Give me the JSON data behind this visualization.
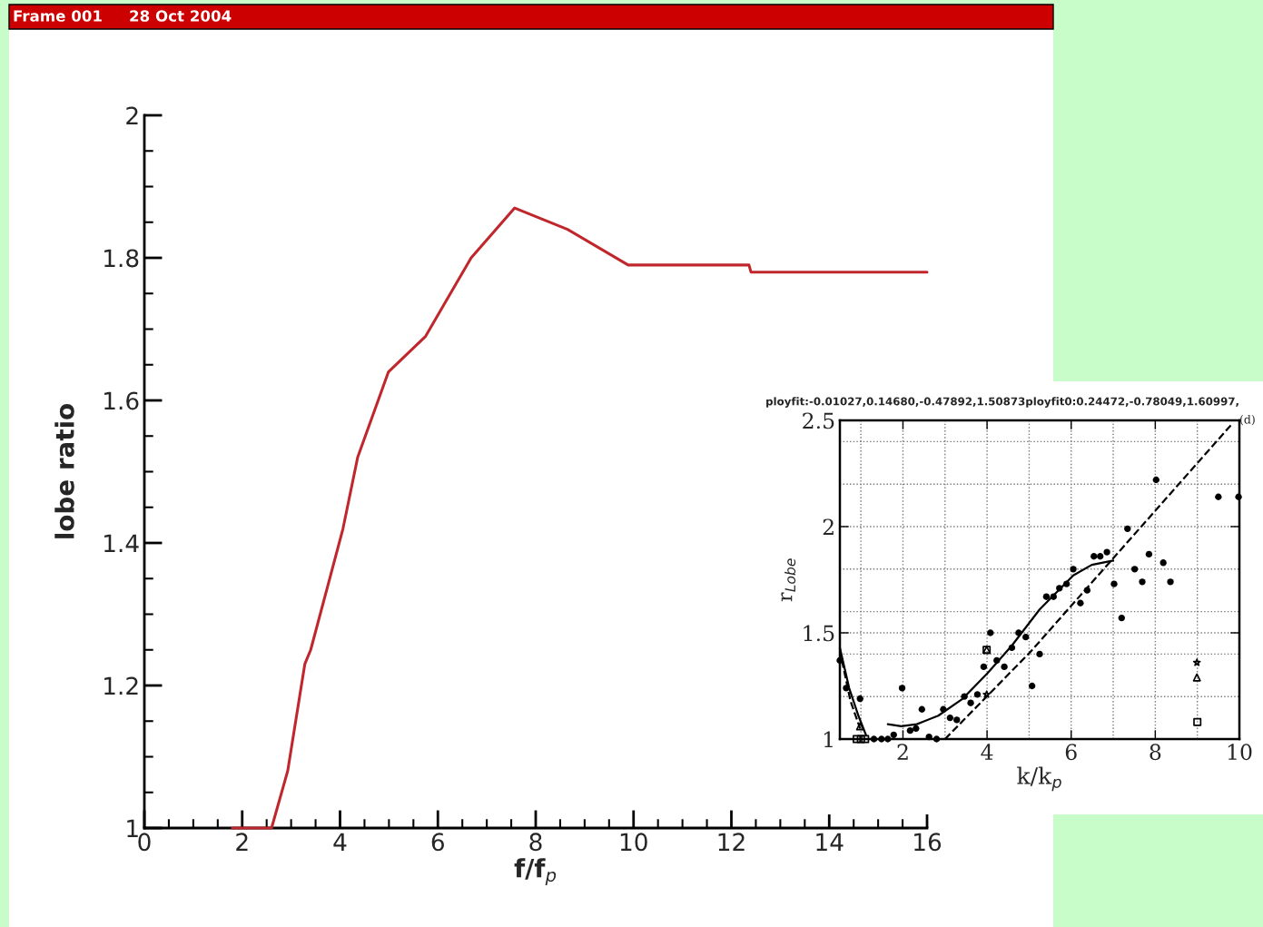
{
  "chart_data": [
    {
      "type": "line",
      "annotations": [
        "Frame 001",
        "28 Oct 2004"
      ],
      "xlabel": "f/f$_{p}$",
      "ylabel": "lobe ratio",
      "series": [
        {
          "color": "#c0272d",
          "x": [
            1.8,
            2.6,
            2.93,
            3.28,
            3.4,
            3.75,
            4.06,
            4.36,
            4.99,
            5.75,
            6.68,
            7.57,
            8.65,
            9.89,
            10.45,
            12.36,
            12.4,
            16
          ],
          "values": [
            1.0,
            1.0,
            1.08,
            1.23,
            1.25,
            1.34,
            1.42,
            1.52,
            1.64,
            1.69,
            1.8,
            1.87,
            1.84,
            1.79,
            1.79,
            1.79,
            1.78,
            1.78
          ]
        }
      ],
      "xlim": [
        0,
        16
      ],
      "ylim": [
        1,
        2
      ],
      "xticks": [
        0,
        {
          "value": 0.5,
          "label": null
        },
        {
          "value": 1,
          "label": null
        },
        {
          "value": 1.5,
          "label": null
        },
        2,
        {
          "value": 2.5,
          "label": null
        },
        {
          "value": 3,
          "label": null
        },
        {
          "value": 3.5,
          "label": null
        },
        4,
        {
          "value": 4.5,
          "label": null
        },
        {
          "value": 5,
          "label": null
        },
        {
          "value": 5.5,
          "label": null
        },
        6,
        {
          "value": 6.5,
          "label": null
        },
        {
          "value": 7,
          "label": null
        },
        {
          "value": 7.5,
          "label": null
        },
        8,
        {
          "value": 8.5,
          "label": null
        },
        {
          "value": 9,
          "label": null
        },
        {
          "value": 9.5,
          "label": null
        },
        10,
        {
          "value": 10.5,
          "label": null
        },
        {
          "value": 11,
          "label": null
        },
        {
          "value": 11.5,
          "label": null
        },
        12,
        {
          "value": 12.5,
          "label": null
        },
        {
          "value": 13,
          "label": null
        },
        {
          "value": 13.5,
          "label": null
        },
        14,
        {
          "value": 14.5,
          "label": null
        },
        {
          "value": 15,
          "label": null
        },
        {
          "value": 15.5,
          "label": null
        },
        16
      ],
      "yticks": [
        1,
        {
          "value": 1.05,
          "label": null
        },
        {
          "value": 1.1,
          "label": null
        },
        {
          "value": 1.15,
          "label": null
        },
        1.2,
        {
          "value": 1.25,
          "label": null
        },
        {
          "value": 1.3,
          "label": null
        },
        {
          "value": 1.35,
          "label": null
        },
        1.4,
        {
          "value": 1.45,
          "label": null
        },
        {
          "value": 1.5,
          "label": null
        },
        {
          "value": 1.55,
          "label": null
        },
        1.6,
        {
          "value": 1.65,
          "label": null
        },
        {
          "value": 1.7,
          "label": null
        },
        {
          "value": 1.75,
          "label": null
        },
        1.8,
        {
          "value": 1.85,
          "label": null
        },
        {
          "value": 1.9,
          "label": null
        },
        {
          "value": 1.95,
          "label": null
        },
        2
      ]
    },
    {
      "type": "scatter",
      "title": "ployfit:-0.01027,0.14680,-0.47892,1.50873ployfit0:0.24472,-0.78049,1.60997,",
      "annotations": [
        "(d)"
      ],
      "xlabel": "k/k$_{p}$",
      "ylabel": "r$_{Lobe}$",
      "grid": true,
      "series": [
        {
          "type": "scatter",
          "marker": "circle",
          "color": "#000000",
          "x": [
            0.5,
            0.65,
            0.98,
            1.31,
            1.49,
            1.64,
            1.78,
            1.98,
            2.17,
            2.31,
            2.45,
            2.62,
            2.8,
            2.96,
            3.12,
            3.28,
            3.46,
            3.61,
            3.77,
            3.92,
            4.08,
            4.23,
            4.41,
            4.59,
            4.75,
            4.92,
            5.07,
            5.25,
            5.41,
            5.58,
            5.72,
            5.89,
            6.05,
            6.22,
            6.38,
            6.54,
            6.69,
            6.85,
            7.02,
            7.2,
            7.34,
            7.51,
            7.69,
            7.85,
            8.02,
            8.19,
            8.36,
            9.5,
            9.98
          ],
          "values": [
            1.37,
            1.24,
            1.19,
            1.0,
            1.0,
            1.0,
            1.02,
            1.24,
            1.04,
            1.05,
            1.14,
            1.01,
            1.0,
            1.14,
            1.1,
            1.09,
            1.2,
            1.17,
            1.21,
            1.34,
            1.5,
            1.37,
            1.34,
            1.43,
            1.5,
            1.48,
            1.25,
            1.4,
            1.67,
            1.67,
            1.71,
            1.73,
            1.8,
            1.64,
            1.7,
            1.86,
            1.86,
            1.88,
            1.73,
            1.57,
            1.99,
            1.8,
            1.74,
            1.87,
            2.22,
            1.83,
            1.74,
            2.14,
            2.14
          ]
        },
        {
          "type": "scatter",
          "marker": "square",
          "color": "#000000",
          "x": [
            0.9,
            1.0,
            1.1,
            3.99,
            9.0
          ],
          "values": [
            1.0,
            1.0,
            1.0,
            1.42,
            1.08
          ]
        },
        {
          "type": "scatter",
          "marker": "triangle",
          "color": "#000000",
          "x": [
            0.98,
            3.99,
            8.99
          ],
          "values": [
            1.06,
            1.42,
            1.29
          ]
        },
        {
          "type": "scatter",
          "marker": "star",
          "color": "#000000",
          "x": [
            3.99,
            8.99
          ],
          "values": [
            1.21,
            1.36
          ]
        },
        {
          "type": "line",
          "line_style": "solid",
          "color": "#000000",
          "x": [
            0.5,
            0.72,
            0.94,
            1.12
          ],
          "values": [
            1.43,
            1.24,
            1.11,
            1.02
          ]
        },
        {
          "type": "line",
          "line_style": "solid",
          "color": "#000000",
          "x": [
            1.64,
            1.96,
            2.33,
            2.84,
            3.42,
            4.01,
            4.59,
            5.25,
            6.05,
            6.49,
            7.0
          ],
          "values": [
            1.07,
            1.06,
            1.07,
            1.11,
            1.19,
            1.31,
            1.44,
            1.61,
            1.77,
            1.82,
            1.84
          ]
        },
        {
          "type": "line",
          "line_style": "dashed",
          "color": "#000000",
          "x": [
            0.55,
            0.75,
            0.98
          ],
          "values": [
            1.37,
            1.18,
            1.05
          ]
        },
        {
          "type": "line",
          "line_style": "dashed",
          "color": "#000000",
          "x": [
            3.0,
            5.03,
            9.81
          ],
          "values": [
            1.0,
            1.41,
            2.48
          ]
        }
      ],
      "xlim": [
        0.5,
        10
      ],
      "ylim": [
        1,
        2.5
      ],
      "xticks": [
        {
          "value": 1,
          "label": null
        },
        2,
        {
          "value": 3,
          "label": null
        },
        4,
        {
          "value": 5,
          "label": null
        },
        6,
        {
          "value": 7,
          "label": null
        },
        8,
        {
          "value": 9,
          "label": null
        },
        10
      ],
      "yticks": [
        1,
        {
          "value": 1.2,
          "label": null
        },
        {
          "value": 1.4,
          "label": null
        },
        1.5,
        {
          "value": 1.6,
          "label": null
        },
        {
          "value": 1.8,
          "label": null
        },
        2,
        {
          "value": 2.2,
          "label": null
        },
        {
          "value": 2.4,
          "label": null
        },
        2.5
      ]
    }
  ]
}
